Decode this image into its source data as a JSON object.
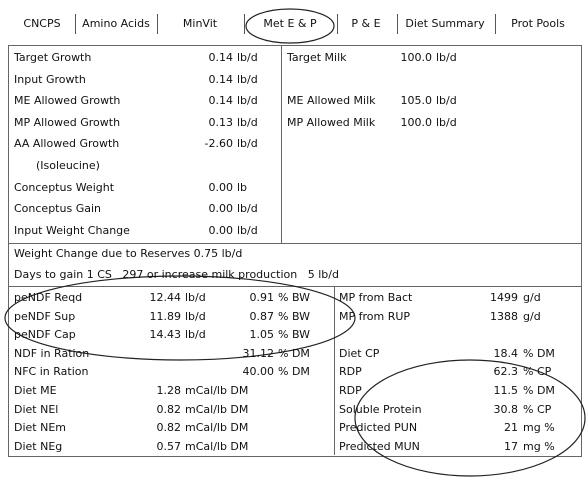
{
  "tabs": [
    "CNCPS",
    "Amino Acids",
    "MinVit",
    "Met E & P",
    "P & E",
    "Diet Summary",
    "Prot Pools"
  ],
  "growth": [
    {
      "label": "Target Growth",
      "value": "0.14",
      "unit": "lb/d"
    },
    {
      "label": "Input Growth",
      "value": "0.14",
      "unit": "lb/d"
    },
    {
      "label": "ME Allowed Growth",
      "value": "0.14",
      "unit": "lb/d"
    },
    {
      "label": "MP Allowed Growth",
      "value": "0.13",
      "unit": "lb/d"
    },
    {
      "label": "AA Allowed Growth",
      "value": "-2.60",
      "unit": "lb/d"
    },
    {
      "label": "(Isoleucine)"
    },
    {
      "label": "Conceptus Weight",
      "value": "0.00",
      "unit": "lb"
    },
    {
      "label": "Conceptus Gain",
      "value": "0.00",
      "unit": "lb/d"
    },
    {
      "label": "Input Weight Change",
      "value": "0.00",
      "unit": "lb/d"
    }
  ],
  "milk": [
    {
      "row": 0,
      "label": "Target Milk",
      "value": "100.0",
      "unit": "lb/d"
    },
    {
      "row": 2,
      "label": "ME Allowed Milk",
      "value": "105.0",
      "unit": "lb/d"
    },
    {
      "row": 3,
      "label": "MP Allowed Milk",
      "value": "100.0",
      "unit": "lb/d"
    }
  ],
  "reserves": [
    "Weight Change due to Reserves 0.75 lb/d",
    "Days to gain 1 CS   297 or increase milk production   5 lb/d"
  ],
  "fiber": [
    {
      "label": "peNDF Reqd",
      "a": "12.44",
      "au": "lb/d",
      "b": "0.91",
      "bu": "% BW"
    },
    {
      "label": "peNDF Sup",
      "a": "11.89",
      "au": "lb/d",
      "b": "0.87",
      "bu": "% BW"
    },
    {
      "label": "peNDF Cap",
      "a": "14.43",
      "au": "lb/d",
      "b": "1.05",
      "bu": "% BW"
    },
    {
      "label": "NDF in Ration",
      "b": "31.12",
      "bu": "% DM"
    },
    {
      "label": "NFC in Ration",
      "b": "40.00",
      "bu": "% DM"
    },
    {
      "label": "Diet ME",
      "a": "1.28",
      "au": "mCal/lb DM"
    },
    {
      "label": "Diet NEl",
      "a": "0.82",
      "au": "mCal/lb DM"
    },
    {
      "label": "Diet NEm",
      "a": "0.82",
      "au": "mCal/lb DM"
    },
    {
      "label": "Diet NEg",
      "a": "0.57",
      "au": "mCal/lb DM"
    }
  ],
  "protein": [
    {
      "row": 0,
      "label": "MP from Bact",
      "value": "1499",
      "unit": "g/d"
    },
    {
      "row": 1,
      "label": "MP from RUP",
      "value": "1388",
      "unit": "g/d"
    },
    {
      "row": 3,
      "label": "Diet CP",
      "value": "18.4",
      "unit": "% DM"
    },
    {
      "row": 4,
      "label": "RDP",
      "value": "62.3",
      "unit": "% CP"
    },
    {
      "row": 5,
      "label": "RDP",
      "value": "11.5",
      "unit": "% DM"
    },
    {
      "row": 6,
      "label": "Soluble Protein",
      "value": "30.8",
      "unit": "% CP"
    },
    {
      "row": 7,
      "label": "Predicted PUN",
      "value": "21",
      "unit": "mg %"
    },
    {
      "row": 8,
      "label": "Predicted MUN",
      "value": "17",
      "unit": "mg %"
    }
  ]
}
